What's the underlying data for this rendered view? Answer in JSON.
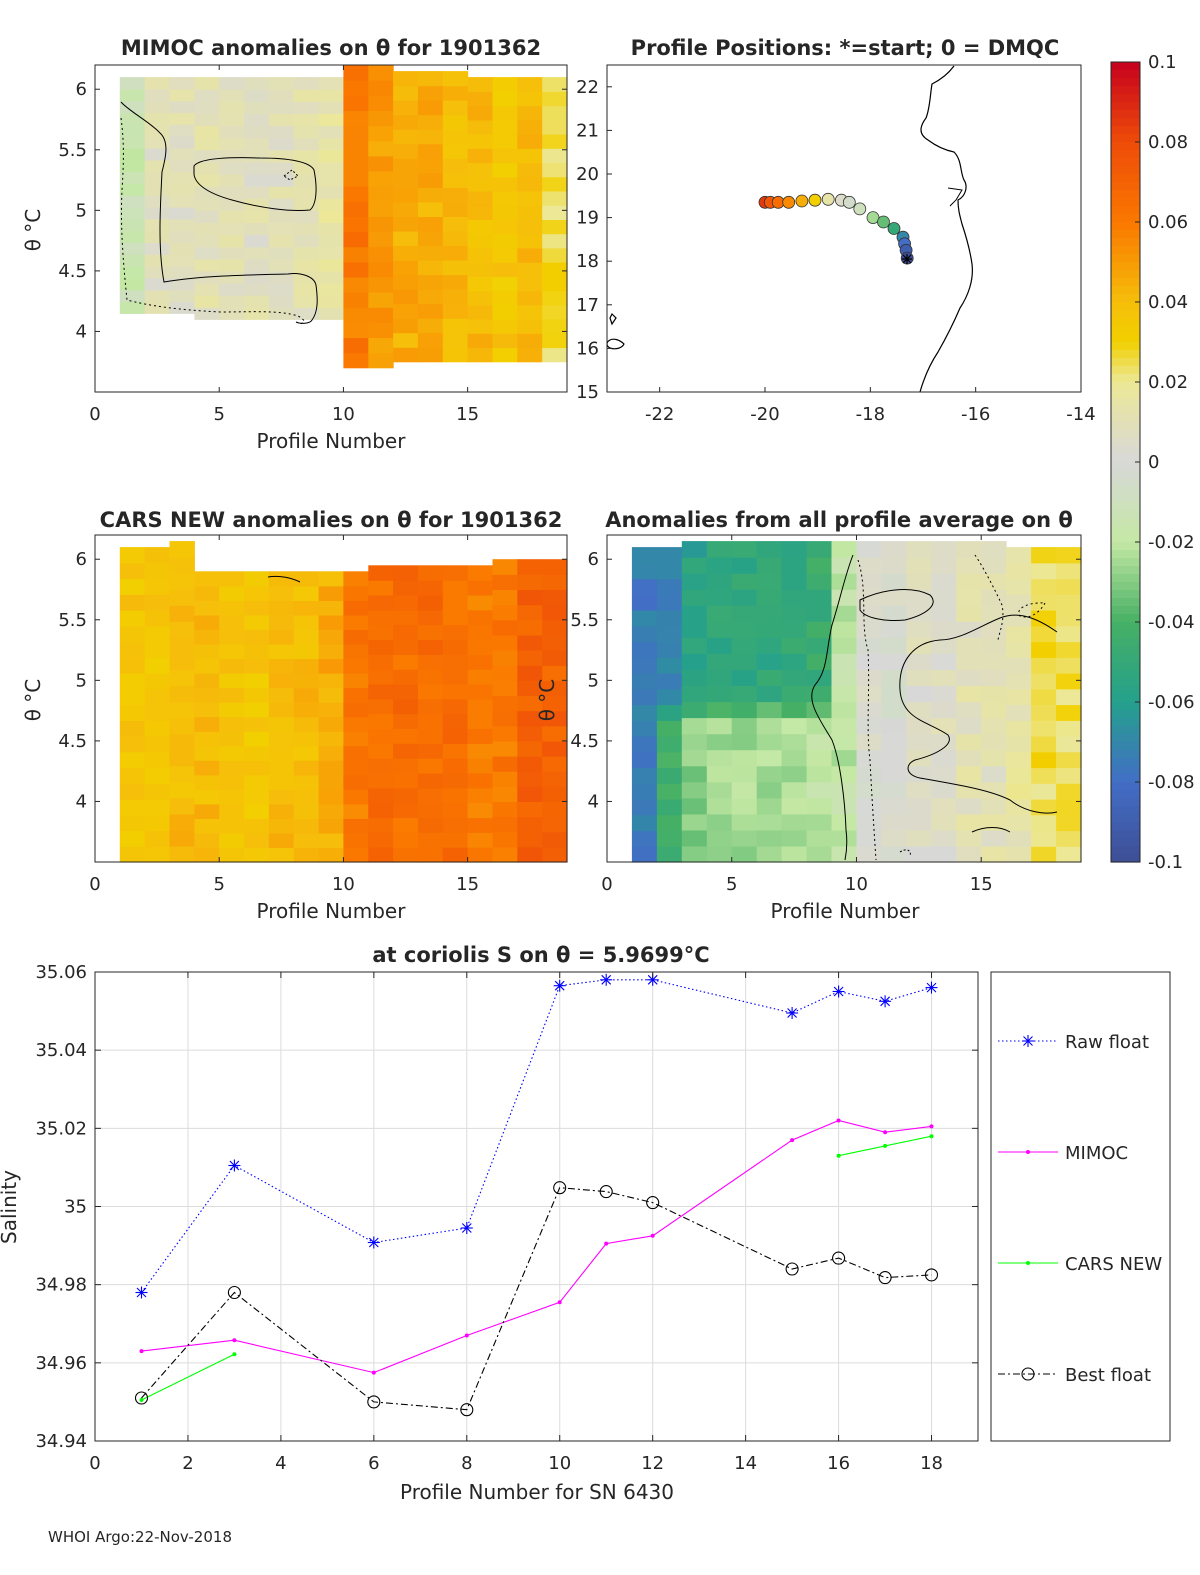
{
  "colors": {
    "raw_float": "#0000ff",
    "mimoc": "#ff00ff",
    "cars_new": "#00ff00",
    "best_float": "#000000",
    "axis": "#262626",
    "grid": "#dcdcdc"
  },
  "footer": "WHOI Argo:22-Nov-2018",
  "panels": {
    "mimoc": {
      "title": "MIMOC anomalies on θ  for 1901362",
      "xlabel": "Profile Number",
      "ylabel": "θ °C",
      "xticks": [
        "0",
        "5",
        "10",
        "15"
      ],
      "yticks": [
        "4",
        "4.5",
        "5",
        "5.5",
        "6"
      ]
    },
    "positions": {
      "title": "Profile Positions: *=start; 0 = DMQC",
      "xticks": [
        "-22",
        "-20",
        "-18",
        "-16",
        "-14"
      ],
      "yticks": [
        "15",
        "16",
        "17",
        "18",
        "19",
        "20",
        "21",
        "22"
      ]
    },
    "cars": {
      "title": "CARS NEW anomalies on θ for 1901362",
      "xlabel": "Profile Number",
      "ylabel": "θ °C",
      "xticks": [
        "0",
        "5",
        "10",
        "15"
      ],
      "yticks": [
        "4",
        "4.5",
        "5",
        "5.5",
        "6"
      ]
    },
    "allavg": {
      "title": "Anomalies from all profile average on θ",
      "xlabel": "Profile Number",
      "ylabel": "θ °C",
      "xticks": [
        "0",
        "5",
        "10",
        "15"
      ],
      "yticks": [
        "4",
        "4.5",
        "5",
        "5.5",
        "6"
      ]
    },
    "colorbar": {
      "ticks": [
        "0.1",
        "0.08",
        "0.06",
        "0.04",
        "0.02",
        "0",
        "-0.02",
        "-0.04",
        "-0.06",
        "-0.08",
        "-0.1"
      ]
    },
    "salinity": {
      "title": "at coriolis S on θ = 5.9699°C",
      "xlabel": "Profile Number for SN 6430",
      "ylabel": "Salinity",
      "xticks": [
        "0",
        "2",
        "4",
        "6",
        "8",
        "10",
        "12",
        "14",
        "16",
        "18"
      ],
      "yticks": [
        "34.94",
        "34.96",
        "34.98",
        "35",
        "35.02",
        "35.04",
        "35.06"
      ],
      "legend": [
        "Raw float",
        "MIMOC",
        "CARS NEW",
        "Best float"
      ]
    }
  },
  "chart_data": [
    {
      "type": "heatmap",
      "title": "MIMOC anomalies on θ  for 1901362",
      "xlabel": "Profile Number",
      "ylabel": "θ °C",
      "xlim": [
        0,
        19
      ],
      "ylim": [
        3.5,
        6.2
      ],
      "profiles": [
        1,
        2,
        3,
        4,
        5,
        6,
        7,
        8,
        9,
        10,
        11,
        12,
        13,
        14,
        15,
        16,
        17,
        18
      ],
      "theta_top": [
        6.1,
        6.1,
        6.1,
        6.1,
        6.1,
        6.1,
        6.1,
        6.1,
        6.1,
        6.2,
        6.2,
        6.15,
        6.15,
        6.15,
        6.1,
        6.1,
        6.1,
        6.1
      ],
      "theta_bottom": [
        4.15,
        4.15,
        4.15,
        4.1,
        4.1,
        4.1,
        4.1,
        4.1,
        4.1,
        3.7,
        3.7,
        3.75,
        3.75,
        3.75,
        3.75,
        3.75,
        3.75,
        3.75
      ],
      "anomaly_mean": [
        -0.015,
        0.008,
        0.008,
        0.01,
        0.01,
        0.008,
        0.008,
        0.01,
        0.015,
        0.06,
        0.05,
        0.045,
        0.045,
        0.04,
        0.04,
        0.035,
        0.04,
        0.025
      ]
    },
    {
      "type": "scatter",
      "title": "Profile Positions: *=start; 0 = DMQC",
      "xlim": [
        -23,
        -14
      ],
      "ylim": [
        15,
        22.5
      ],
      "x": [
        -17.3,
        -17.32,
        -17.35,
        -17.38,
        -17.55,
        -17.75,
        -17.95,
        -18.2,
        -18.4,
        -18.55,
        -18.8,
        -19.05,
        -19.3,
        -19.55,
        -19.75,
        -19.9,
        -20.0
      ],
      "y": [
        18.07,
        18.25,
        18.4,
        18.55,
        18.75,
        18.9,
        19.0,
        19.2,
        19.35,
        19.4,
        19.42,
        19.4,
        19.38,
        19.35,
        19.35,
        19.35,
        19.35
      ],
      "anomaly": [
        -0.1,
        -0.09,
        -0.08,
        -0.07,
        -0.05,
        -0.035,
        -0.025,
        -0.01,
        -0.005,
        0.005,
        0.015,
        0.03,
        0.045,
        0.055,
        0.065,
        0.075,
        0.085
      ]
    },
    {
      "type": "heatmap",
      "title": "CARS NEW anomalies on θ for 1901362",
      "xlabel": "Profile Number",
      "ylabel": "θ °C",
      "xlim": [
        0,
        19
      ],
      "ylim": [
        3.5,
        6.2
      ],
      "profiles": [
        1,
        2,
        3,
        4,
        5,
        6,
        7,
        8,
        9,
        10,
        11,
        12,
        13,
        14,
        15,
        16,
        17,
        18
      ],
      "theta_top": [
        6.1,
        6.1,
        6.15,
        5.9,
        5.9,
        5.9,
        5.9,
        5.9,
        5.9,
        5.9,
        5.95,
        5.95,
        5.95,
        5.95,
        5.95,
        6.0,
        6.0,
        6.0
      ],
      "theta_bottom": [
        3.5,
        3.5,
        3.5,
        3.5,
        3.5,
        3.5,
        3.5,
        3.5,
        3.5,
        3.5,
        3.5,
        3.5,
        3.5,
        3.5,
        3.5,
        3.5,
        3.5,
        3.5
      ],
      "anomaly_mean": [
        0.035,
        0.035,
        0.04,
        0.04,
        0.035,
        0.035,
        0.04,
        0.04,
        0.045,
        0.06,
        0.065,
        0.065,
        0.065,
        0.065,
        0.06,
        0.06,
        0.07,
        0.07
      ]
    },
    {
      "type": "heatmap",
      "title": "Anomalies from all profile average on θ",
      "xlabel": "Profile Number",
      "ylabel": "θ °C",
      "xlim": [
        0,
        19
      ],
      "ylim": [
        3.5,
        6.2
      ],
      "profiles": [
        1,
        2,
        3,
        4,
        5,
        6,
        7,
        8,
        9,
        10,
        11,
        12,
        13,
        14,
        15,
        16,
        17,
        18
      ],
      "theta_top": [
        6.1,
        6.1,
        6.15,
        6.15,
        6.15,
        6.15,
        6.15,
        6.15,
        6.15,
        6.15,
        6.15,
        6.15,
        6.15,
        6.15,
        6.15,
        6.1,
        6.1,
        6.1
      ],
      "theta_bottom": [
        3.5,
        3.5,
        3.5,
        3.5,
        3.5,
        3.5,
        3.5,
        3.5,
        3.5,
        3.5,
        3.5,
        3.5,
        3.5,
        3.5,
        3.5,
        3.5,
        3.5,
        3.5
      ],
      "anomaly_mean": [
        -0.075,
        -0.06,
        -0.045,
        -0.04,
        -0.04,
        -0.04,
        -0.04,
        -0.035,
        -0.02,
        0.0,
        0.0,
        0.005,
        0.005,
        0.01,
        0.01,
        0.015,
        0.025,
        0.025
      ]
    },
    {
      "type": "colorbar",
      "range": [
        -0.1,
        0.1
      ],
      "colormap": "jet-like (blue-green-gray-yellow-red)"
    },
    {
      "type": "line",
      "title": "at coriolis S on θ = 5.9699°C",
      "xlabel": "Profile Number for SN 6430",
      "ylabel": "Salinity",
      "xlim": [
        0,
        19
      ],
      "ylim": [
        34.94,
        35.06
      ],
      "grid": true,
      "legend_position": "outside-right",
      "series": [
        {
          "name": "Raw float",
          "style": "dotted-asterisk",
          "x": [
            1,
            3,
            6,
            8,
            10,
            11,
            12,
            15,
            16,
            17,
            18
          ],
          "y": [
            34.978,
            35.0105,
            34.9908,
            34.9945,
            35.0565,
            35.058,
            35.058,
            35.0495,
            35.055,
            35.0525,
            35.056
          ]
        },
        {
          "name": "MIMOC",
          "style": "solid-dot",
          "x": [
            1,
            3,
            6,
            8,
            10,
            11,
            12,
            15,
            16,
            17,
            18
          ],
          "y": [
            34.963,
            34.9658,
            34.9575,
            34.967,
            34.9755,
            34.9905,
            34.9925,
            35.017,
            35.022,
            35.019,
            35.0205
          ]
        },
        {
          "name": "CARS NEW",
          "style": "solid-dot",
          "x": [
            1,
            3,
            null,
            16,
            17,
            18
          ],
          "y": [
            34.9505,
            34.9622,
            null,
            35.013,
            35.0155,
            35.018
          ]
        },
        {
          "name": "Best float",
          "style": "dashdot-circle",
          "x": [
            1,
            3,
            6,
            8,
            10,
            11,
            12,
            15,
            16,
            17,
            18
          ],
          "y": [
            34.951,
            34.978,
            34.95,
            34.948,
            35.0048,
            35.0038,
            35.001,
            34.984,
            34.9868,
            34.9818,
            34.9825
          ]
        }
      ]
    }
  ]
}
